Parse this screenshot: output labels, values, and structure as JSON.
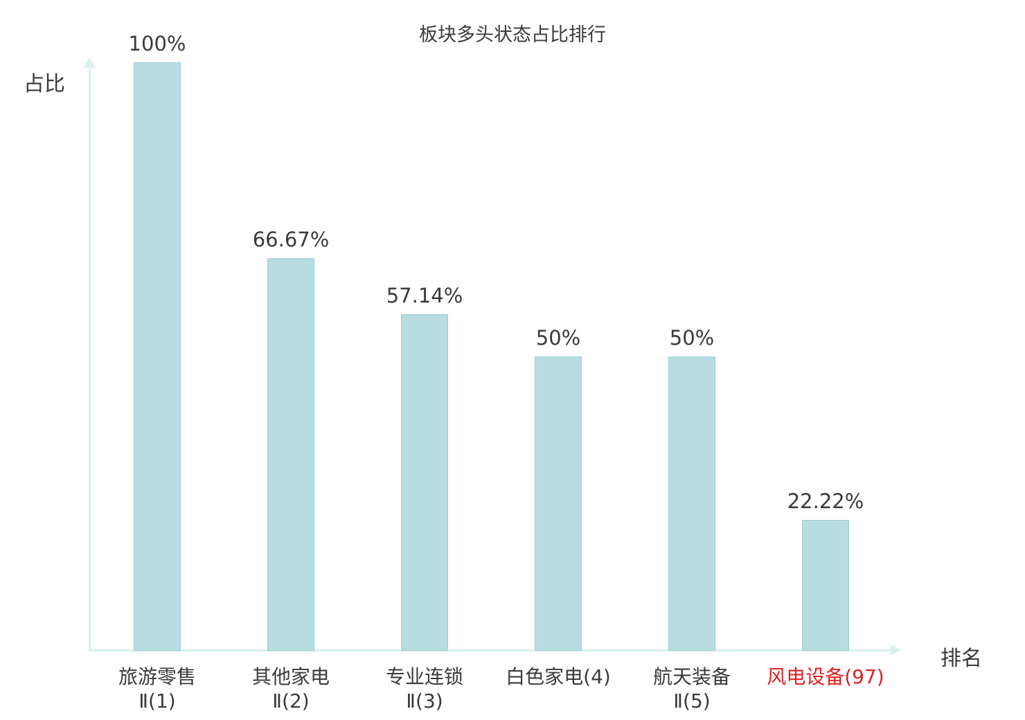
{
  "chart_data": {
    "type": "bar",
    "title": "板块多头状态占比排行",
    "xlabel": "排名",
    "ylabel": "占比",
    "ylim": [
      0,
      100
    ],
    "grid": false,
    "legend": "none",
    "bar_color": "#b7dde1",
    "axis_color": "#d9efef",
    "text_color": "#3a3a3a",
    "highlight_color": "#e01f1f",
    "categories": [
      {
        "line1": "旅游零售",
        "line2": "Ⅱ(1)",
        "color": "#3a3a3a"
      },
      {
        "line1": "其他家电",
        "line2": "Ⅱ(2)",
        "color": "#3a3a3a"
      },
      {
        "line1": "专业连锁",
        "line2": "Ⅱ(3)",
        "color": "#3a3a3a"
      },
      {
        "line1": "白色家电(4)",
        "line2": "",
        "color": "#3a3a3a"
      },
      {
        "line1": "航天装备",
        "line2": "Ⅱ(5)",
        "color": "#3a3a3a"
      },
      {
        "line1": "风电设备(97)",
        "line2": "",
        "color": "#e01f1f"
      }
    ],
    "values": [
      100,
      66.67,
      57.14,
      50,
      50,
      22.22
    ],
    "value_labels": [
      "100%",
      "66.67%",
      "57.14%",
      "50%",
      "50%",
      "22.22%"
    ]
  }
}
